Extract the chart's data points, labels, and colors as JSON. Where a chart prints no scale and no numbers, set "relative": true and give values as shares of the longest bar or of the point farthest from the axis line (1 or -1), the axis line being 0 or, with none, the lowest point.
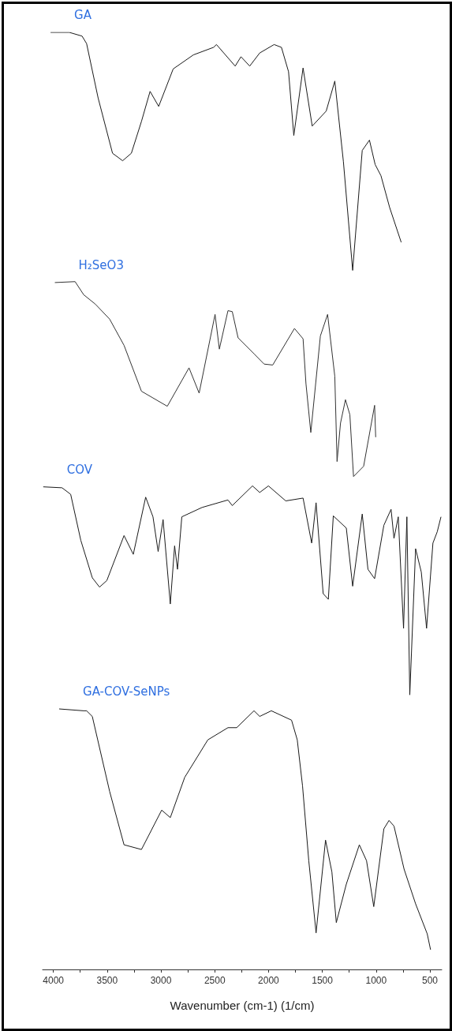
{
  "chart_data": {
    "type": "line",
    "relative": true,
    "xlabel": "Wavenumber (cm-1) (1/cm)",
    "grid": false,
    "marker": "none",
    "xlim": [
      4100,
      390
    ],
    "xticks": [
      4000,
      {
        "value": 3750,
        "label": null
      },
      3500,
      {
        "value": 3250,
        "label": null
      },
      3000,
      {
        "value": 2750,
        "label": null
      },
      2500,
      {
        "value": 2250,
        "label": null
      },
      2000,
      {
        "value": 1750,
        "label": null
      },
      1500,
      {
        "value": 1250,
        "label": null
      },
      1000,
      {
        "value": 750,
        "label": null
      },
      500
    ],
    "series": [
      {
        "name": "GA",
        "color": "#1a1a1a",
        "x": [
          4026,
          3852,
          3733,
          3691,
          3584,
          3450,
          3356,
          3275,
          3181,
          3101,
          3021,
          2886,
          2698,
          2511,
          2484,
          2310,
          2256,
          2175,
          2082,
          1948,
          1880,
          1814,
          1765,
          1679,
          1594,
          1464,
          1384,
          1304,
          1218,
          1129,
          1062,
          1009,
          955,
          874,
          767
        ],
        "values": [
          1.0,
          1.0,
          0.996,
          0.988,
          0.93,
          0.871,
          0.863,
          0.871,
          0.905,
          0.937,
          0.921,
          0.961,
          0.976,
          0.984,
          0.987,
          0.964,
          0.974,
          0.964,
          0.978,
          0.987,
          0.984,
          0.958,
          0.89,
          0.962,
          0.9,
          0.916,
          0.948,
          0.862,
          0.746,
          0.874,
          0.885,
          0.859,
          0.847,
          0.813,
          0.776
        ]
      },
      {
        "name": "H₂SeO3",
        "color": "#333333",
        "x": [
          3986,
          3798,
          3718,
          3610,
          3477,
          3343,
          3181,
          2941,
          2739,
          2645,
          2497,
          2457,
          2377,
          2337,
          2283,
          2135,
          2041,
          1961,
          1759,
          1679,
          1652,
          1607,
          1518,
          1451,
          1384,
          1363,
          1331,
          1285,
          1244,
          1210,
          1116,
          1014,
          1004
        ],
        "values": [
          0.733,
          0.734,
          0.72,
          0.71,
          0.694,
          0.666,
          0.617,
          0.601,
          0.642,
          0.615,
          0.699,
          0.662,
          0.703,
          0.702,
          0.674,
          0.657,
          0.646,
          0.645,
          0.684,
          0.673,
          0.625,
          0.573,
          0.676,
          0.699,
          0.633,
          0.542,
          0.583,
          0.608,
          0.592,
          0.526,
          0.537,
          0.602,
          0.568
        ]
      },
      {
        "name": "COV",
        "color": "#1a1a1a",
        "x": [
          4094,
          3919,
          3839,
          3745,
          3638,
          3571,
          3503,
          3343,
          3257,
          3142,
          3074,
          3026,
          2980,
          2913,
          2873,
          2846,
          2806,
          2618,
          2377,
          2337,
          2149,
          2082,
          2001,
          1840,
          1679,
          1599,
          1558,
          1492,
          1444,
          1398,
          1277,
          1218,
          1129,
          1076,
          1014,
          928,
          861,
          834,
          794,
          745,
          714,
          687,
          633,
          580,
          531,
          472,
          432,
          397
        ],
        "values": [
          0.515,
          0.514,
          0.507,
          0.458,
          0.418,
          0.408,
          0.415,
          0.463,
          0.443,
          0.504,
          0.483,
          0.446,
          0.48,
          0.39,
          0.452,
          0.427,
          0.483,
          0.493,
          0.501,
          0.495,
          0.516,
          0.509,
          0.516,
          0.5,
          0.503,
          0.455,
          0.498,
          0.401,
          0.395,
          0.484,
          0.471,
          0.409,
          0.486,
          0.427,
          0.417,
          0.474,
          0.491,
          0.46,
          0.483,
          0.364,
          0.483,
          0.293,
          0.449,
          0.424,
          0.364,
          0.455,
          0.467,
          0.483
        ]
      },
      {
        "name": "GA-COV-SeNPs",
        "color": "#1a1a1a",
        "x": [
          3946,
          3718,
          3691,
          3638,
          3477,
          3343,
          3181,
          2993,
          2913,
          2779,
          2564,
          2377,
          2296,
          2135,
          2082,
          1974,
          1786,
          1733,
          1684,
          1626,
          1558,
          1470,
          1411,
          1370,
          1277,
          1156,
          1089,
          1022,
          928,
          880,
          834,
          740,
          633,
          525,
          494
        ],
        "values": [
          0.278,
          0.276,
          0.276,
          0.27,
          0.19,
          0.133,
          0.128,
          0.17,
          0.162,
          0.205,
          0.245,
          0.258,
          0.258,
          0.276,
          0.27,
          0.276,
          0.266,
          0.245,
          0.196,
          0.116,
          0.039,
          0.138,
          0.104,
          0.05,
          0.091,
          0.133,
          0.116,
          0.067,
          0.15,
          0.159,
          0.153,
          0.107,
          0.07,
          0.038,
          0.021
        ]
      }
    ]
  }
}
